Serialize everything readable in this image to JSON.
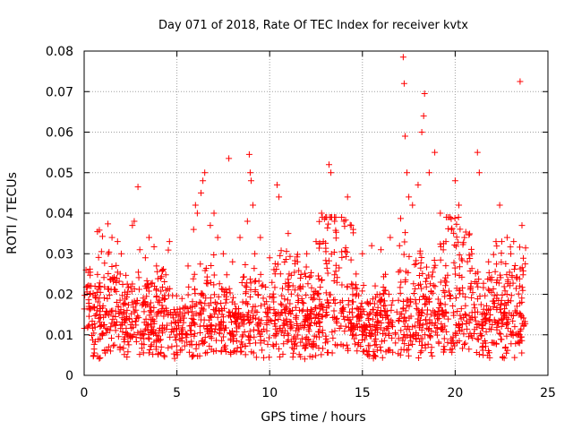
{
  "chart_data": {
    "type": "scatter",
    "title": "Day 071 of 2018, Rate Of TEC Index for receiver kvtx",
    "xlabel": "GPS time / hours",
    "ylabel": "ROTI / TECUs",
    "xlim": [
      0,
      25
    ],
    "ylim": [
      0,
      0.08
    ],
    "xticks": [
      0,
      5,
      10,
      15,
      20,
      25
    ],
    "yticks": [
      0,
      0.01,
      0.02,
      0.03,
      0.04,
      0.05,
      0.06,
      0.07,
      0.08
    ],
    "xtick_labels": [
      "0",
      "5",
      "10",
      "15",
      "20",
      "25"
    ],
    "ytick_labels": [
      "0",
      "0.01",
      "0.02",
      "0.03",
      "0.04",
      "0.05",
      "0.06",
      "0.07",
      "0.08"
    ],
    "grid": true,
    "marker": "+",
    "color": "#ff0000",
    "series": [
      {
        "name": "ROTI",
        "points": [
          [
            0.1,
            0.026
          ],
          [
            0.3,
            0.02
          ],
          [
            1.3,
            0.03
          ],
          [
            1.5,
            0.034
          ],
          [
            1.8,
            0.033
          ],
          [
            2.0,
            0.03
          ],
          [
            2.6,
            0.037
          ],
          [
            2.7,
            0.038
          ],
          [
            2.9,
            0.0465
          ],
          [
            3.0,
            0.031
          ],
          [
            3.3,
            0.029
          ],
          [
            3.5,
            0.034
          ],
          [
            3.9,
            0.027
          ],
          [
            4.2,
            0.026
          ],
          [
            4.6,
            0.033
          ],
          [
            5.6,
            0.027
          ],
          [
            5.9,
            0.036
          ],
          [
            6.0,
            0.042
          ],
          [
            6.1,
            0.04
          ],
          [
            6.3,
            0.045
          ],
          [
            6.4,
            0.048
          ],
          [
            6.5,
            0.05
          ],
          [
            6.8,
            0.037
          ],
          [
            7.0,
            0.04
          ],
          [
            7.2,
            0.034
          ],
          [
            7.5,
            0.03
          ],
          [
            7.8,
            0.0535
          ],
          [
            8.0,
            0.028
          ],
          [
            8.4,
            0.034
          ],
          [
            8.8,
            0.038
          ],
          [
            8.9,
            0.0545
          ],
          [
            8.95,
            0.05
          ],
          [
            9.0,
            0.048
          ],
          [
            9.1,
            0.042
          ],
          [
            9.2,
            0.03
          ],
          [
            9.5,
            0.034
          ],
          [
            10.0,
            0.029
          ],
          [
            10.4,
            0.047
          ],
          [
            10.5,
            0.044
          ],
          [
            11.0,
            0.035
          ],
          [
            11.5,
            0.028
          ],
          [
            12.0,
            0.03
          ],
          [
            12.5,
            0.033
          ],
          [
            12.8,
            0.04
          ],
          [
            13.2,
            0.052
          ],
          [
            13.3,
            0.05
          ],
          [
            13.5,
            0.038
          ],
          [
            14.0,
            0.038
          ],
          [
            14.2,
            0.044
          ],
          [
            14.5,
            0.036
          ],
          [
            15.0,
            0.03
          ],
          [
            15.5,
            0.032
          ],
          [
            16.0,
            0.031
          ],
          [
            16.5,
            0.034
          ],
          [
            17.0,
            0.032
          ],
          [
            17.2,
            0.0785
          ],
          [
            17.25,
            0.072
          ],
          [
            17.3,
            0.059
          ],
          [
            17.4,
            0.05
          ],
          [
            17.5,
            0.044
          ],
          [
            17.7,
            0.042
          ],
          [
            18.0,
            0.047
          ],
          [
            18.2,
            0.06
          ],
          [
            18.3,
            0.064
          ],
          [
            18.35,
            0.0695
          ],
          [
            18.6,
            0.05
          ],
          [
            18.9,
            0.055
          ],
          [
            19.2,
            0.04
          ],
          [
            19.5,
            0.033
          ],
          [
            19.8,
            0.036
          ],
          [
            20.0,
            0.048
          ],
          [
            20.2,
            0.042
          ],
          [
            20.5,
            0.034
          ],
          [
            20.9,
            0.03
          ],
          [
            21.2,
            0.055
          ],
          [
            21.3,
            0.05
          ],
          [
            21.8,
            0.028
          ],
          [
            22.2,
            0.033
          ],
          [
            22.4,
            0.042
          ],
          [
            22.8,
            0.034
          ],
          [
            23.0,
            0.03
          ],
          [
            23.5,
            0.0725
          ],
          [
            23.6,
            0.037
          ]
        ]
      }
    ]
  }
}
